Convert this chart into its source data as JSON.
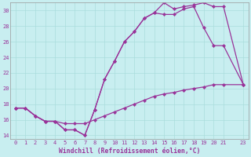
{
  "background_color": "#c8eef0",
  "grid_color": "#aadddd",
  "line_color": "#993399",
  "marker": "D",
  "markersize": 2.2,
  "linewidth": 0.9,
  "xlabel": "Windchill (Refroidissement éolien,°C)",
  "xlim_min": -0.5,
  "xlim_max": 23.5,
  "ylim_min": 13.5,
  "ylim_max": 31.0,
  "yticks": [
    14,
    16,
    18,
    20,
    22,
    24,
    26,
    28,
    30
  ],
  "xticks": [
    0,
    1,
    2,
    3,
    4,
    5,
    6,
    7,
    8,
    9,
    10,
    11,
    12,
    13,
    14,
    15,
    16,
    17,
    18,
    19,
    20,
    21,
    23
  ],
  "tick_fontsize": 5.0,
  "xlabel_fontsize": 5.8,
  "line1_x": [
    0,
    1,
    2,
    3,
    4,
    5,
    6,
    7,
    8,
    9,
    10,
    11,
    12,
    13,
    14,
    15,
    16,
    17,
    18,
    19,
    20,
    21,
    23
  ],
  "line1_y": [
    17.5,
    17.5,
    16.5,
    15.8,
    15.8,
    14.7,
    14.7,
    14.0,
    17.3,
    21.2,
    23.5,
    26.0,
    27.3,
    29.0,
    29.7,
    31.0,
    30.2,
    30.5,
    30.7,
    31.0,
    30.5,
    30.5,
    20.5
  ],
  "line2_x": [
    0,
    1,
    2,
    3,
    4,
    5,
    6,
    7,
    8,
    9,
    10,
    11,
    12,
    13,
    14,
    15,
    16,
    17,
    18,
    19,
    20,
    21,
    23
  ],
  "line2_y": [
    17.5,
    17.5,
    16.5,
    15.8,
    15.8,
    14.7,
    14.7,
    14.0,
    17.3,
    21.2,
    23.5,
    26.0,
    27.3,
    29.0,
    29.7,
    29.5,
    29.5,
    30.2,
    30.5,
    27.8,
    25.5,
    25.5,
    20.5
  ],
  "line3_x": [
    0,
    1,
    2,
    3,
    4,
    5,
    6,
    7,
    8,
    9,
    10,
    11,
    12,
    13,
    14,
    15,
    16,
    17,
    18,
    19,
    20,
    21,
    23
  ],
  "line3_y": [
    17.5,
    17.5,
    16.5,
    15.8,
    15.8,
    15.5,
    15.5,
    15.5,
    16.0,
    16.5,
    17.0,
    17.5,
    18.0,
    18.5,
    19.0,
    19.3,
    19.5,
    19.8,
    20.0,
    20.2,
    20.5,
    20.5,
    20.5
  ]
}
